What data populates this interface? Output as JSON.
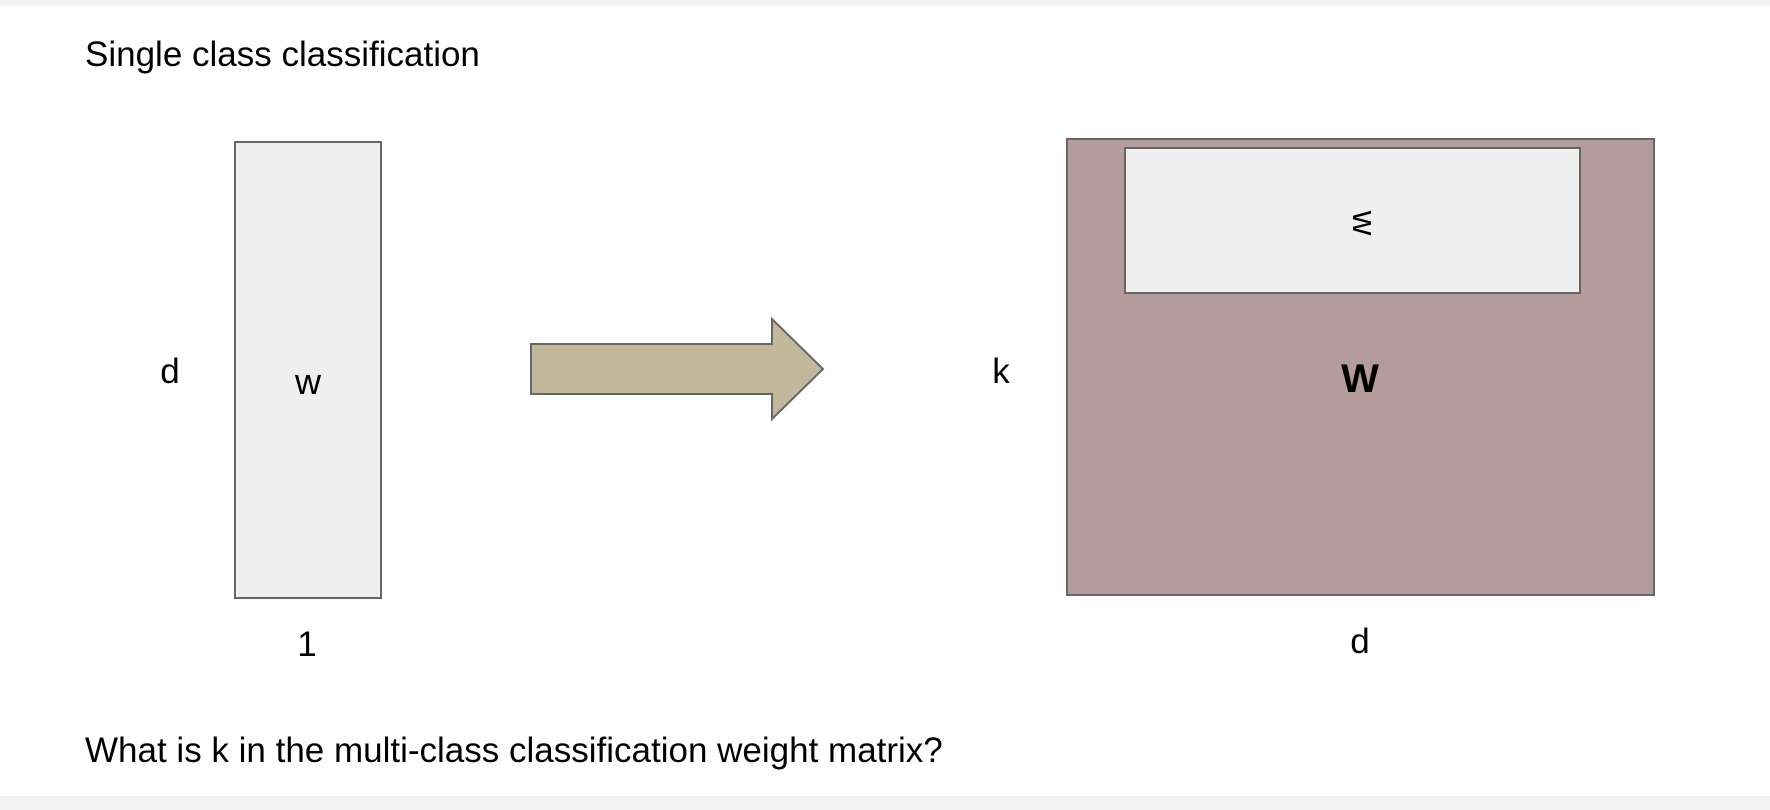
{
  "slide": {
    "title": "Single class classification",
    "question": "What is k in the multi-class classification weight matrix?"
  },
  "left_vector": {
    "inner_label": "w",
    "height_label": "d",
    "width_label": "1"
  },
  "right_matrix": {
    "row_label": "w",
    "matrix_label": "W",
    "height_label": "k",
    "width_label": "d"
  },
  "colors": {
    "light_fill": "#efefef",
    "matrix_fill": "#b59c9c",
    "arrow_fill": "#c2b99c",
    "stroke": "#666666"
  }
}
